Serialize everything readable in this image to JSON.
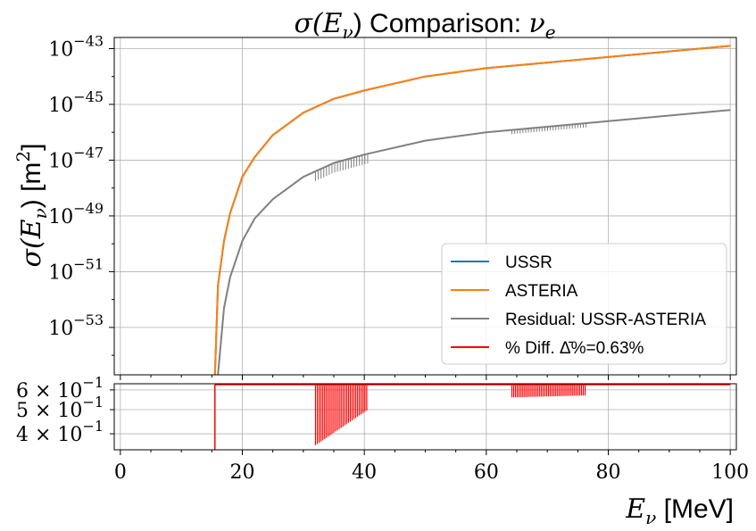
{
  "chart_data": [
    {
      "type": "line",
      "title": "σ(Eν) Comparison: νe",
      "xlabel": "",
      "ylabel": "σ(Eν) [m²]",
      "xlim": [
        -1,
        101
      ],
      "yscale": "log",
      "ylim_log10": [
        -54.7,
        -42.6
      ],
      "yticks": [
        {
          "exp": -43,
          "label": "10",
          "sup": "−43"
        },
        {
          "exp": -45,
          "label": "10",
          "sup": "−45"
        },
        {
          "exp": -47,
          "label": "10",
          "sup": "−47"
        },
        {
          "exp": -49,
          "label": "10",
          "sup": "−49"
        },
        {
          "exp": -51,
          "label": "10",
          "sup": "−51"
        },
        {
          "exp": -53,
          "label": "10",
          "sup": "−53"
        }
      ],
      "grid": true,
      "legend": "bottom-right",
      "series": [
        {
          "name": "USSR",
          "color": "#1f77b4",
          "x": [
            15.5,
            16,
            17,
            18,
            20,
            22,
            25,
            30,
            35,
            40,
            50,
            60,
            70,
            80,
            90,
            100
          ],
          "log10_y": [
            -54.7,
            -51.5,
            -49.9,
            -48.9,
            -47.6,
            -46.9,
            -46.1,
            -45.3,
            -44.8,
            -44.5,
            -44.0,
            -43.7,
            -43.5,
            -43.3,
            -43.1,
            -42.9
          ]
        },
        {
          "name": "ASTERIA",
          "color": "#ff7f0e",
          "x": [
            15.5,
            16,
            17,
            18,
            20,
            22,
            25,
            30,
            35,
            40,
            50,
            60,
            70,
            80,
            90,
            100
          ],
          "log10_y": [
            -54.7,
            -51.5,
            -49.9,
            -48.9,
            -47.6,
            -46.9,
            -46.1,
            -45.3,
            -44.8,
            -44.5,
            -44.0,
            -43.7,
            -43.5,
            -43.3,
            -43.1,
            -42.9
          ]
        },
        {
          "name": "Residual: USSR-ASTERIA",
          "color": "#808080",
          "x": [
            16,
            17,
            18,
            20,
            22,
            25,
            30,
            35,
            40,
            50,
            60,
            70,
            80,
            90,
            100
          ],
          "log10_y": [
            -54.7,
            -52.3,
            -51.2,
            -49.9,
            -49.1,
            -48.4,
            -47.6,
            -47.1,
            -46.8,
            -46.3,
            -46.0,
            -45.8,
            -45.6,
            -45.4,
            -45.2
          ]
        },
        {
          "name": "% Diff. Δ̄%=0.63%",
          "color": "#ff0000",
          "x": [],
          "log10_y": []
        }
      ]
    },
    {
      "type": "line",
      "xlabel": "Eν [MeV]",
      "ylabel": "",
      "xlim": [
        -1,
        101
      ],
      "xticks": [
        0,
        20,
        40,
        60,
        80,
        100
      ],
      "yscale": "log",
      "ylim": [
        0.345,
        0.635
      ],
      "yticks": [
        {
          "value": 0.6,
          "label": "6 × 10",
          "sup": "−1"
        },
        {
          "value": 0.5,
          "label": "5 × 10",
          "sup": "−1"
        },
        {
          "value": 0.4,
          "label": "4 × 10",
          "sup": "−1"
        }
      ],
      "grid": true,
      "series": [
        {
          "name": "% Diff.",
          "color": "#ff0000",
          "baseline": 0.63,
          "drop_bands": [
            {
              "x_start": 32,
              "x_end": 40.6,
              "low_start": 0.36,
              "low_end": 0.5
            },
            {
              "x_start": 64.2,
              "x_end": 76.4,
              "low_start": 0.56,
              "low_end": 0.57
            }
          ]
        }
      ]
    }
  ],
  "mathtext": {
    "title_sigma": "σ(E",
    "title_nu_sub": "ν",
    "title_rest": ") Comparison: ",
    "title_nue": "ν",
    "title_e_sub": "e",
    "ylabel_main": "σ(E",
    "ylabel_sub": "ν",
    "ylabel_rest": ") [m",
    "ylabel_sup": "2",
    "ylabel_close": "]",
    "xlabel_E": "E",
    "xlabel_sub": "ν",
    "xlabel_unit": " [MeV]"
  }
}
